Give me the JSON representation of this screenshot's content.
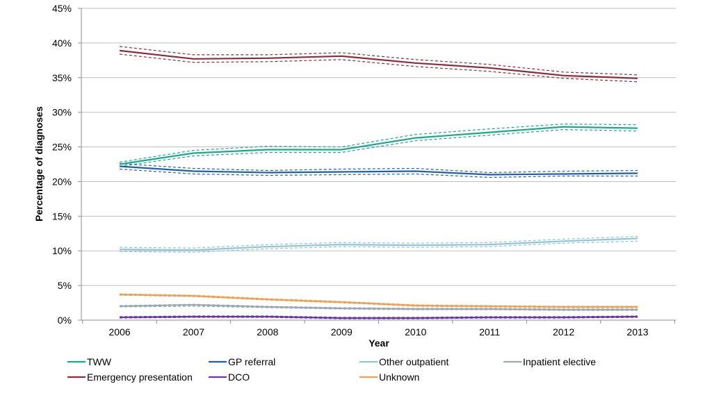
{
  "chart_data": {
    "type": "line",
    "title": "",
    "xlabel": "Year",
    "ylabel": "Percentage of diagnoses",
    "categories": [
      "2006",
      "2007",
      "2008",
      "2009",
      "2010",
      "2011",
      "2012",
      "2013"
    ],
    "ylim": [
      0,
      45
    ],
    "yticks": [
      0,
      5,
      10,
      15,
      20,
      25,
      30,
      35,
      40,
      45
    ],
    "ytick_labels": [
      "0%",
      "5%",
      "10%",
      "15%",
      "20%",
      "25%",
      "30%",
      "35%",
      "40%",
      "45%"
    ],
    "grid": true,
    "legend_position": "bottom",
    "confidence_interval_style": "dashed",
    "series": [
      {
        "name": "TWW",
        "color": "#1aa88a",
        "values": [
          22.5,
          24.1,
          24.6,
          24.6,
          26.3,
          27.1,
          27.9,
          27.7
        ],
        "lower": [
          22.2,
          23.7,
          24.2,
          24.2,
          25.9,
          26.7,
          27.5,
          27.3
        ],
        "upper": [
          22.8,
          24.5,
          25.1,
          25.0,
          26.8,
          27.6,
          28.3,
          28.2
        ]
      },
      {
        "name": "GP referral",
        "color": "#1f5fa6",
        "values": [
          22.2,
          21.5,
          21.3,
          21.4,
          21.5,
          21.0,
          21.1,
          21.2
        ],
        "lower": [
          21.8,
          21.1,
          20.9,
          21.0,
          21.1,
          20.6,
          20.8,
          20.8
        ],
        "upper": [
          22.6,
          21.9,
          21.6,
          21.8,
          21.9,
          21.3,
          21.5,
          21.6
        ]
      },
      {
        "name": "Other outpatient",
        "color": "#8fc3d8",
        "values": [
          10.2,
          10.1,
          10.6,
          10.9,
          10.8,
          10.9,
          11.4,
          11.8
        ],
        "lower": [
          9.9,
          9.8,
          10.3,
          10.6,
          10.5,
          10.6,
          11.1,
          11.4
        ],
        "upper": [
          10.5,
          10.4,
          10.9,
          11.2,
          11.1,
          11.2,
          11.7,
          12.1
        ]
      },
      {
        "name": "Inpatient elective",
        "color": "#9aa8b6",
        "values": [
          2.0,
          2.2,
          1.9,
          1.7,
          1.6,
          1.6,
          1.5,
          1.5
        ],
        "lower": [
          1.9,
          2.0,
          1.8,
          1.6,
          1.5,
          1.5,
          1.4,
          1.4
        ],
        "upper": [
          2.1,
          2.3,
          2.0,
          1.8,
          1.7,
          1.7,
          1.6,
          1.6
        ]
      },
      {
        "name": "Emergency presentation",
        "color": "#8c2a3a",
        "values": [
          38.9,
          37.7,
          37.8,
          38.1,
          37.1,
          36.4,
          35.3,
          34.9
        ],
        "lower": [
          38.4,
          37.2,
          37.3,
          37.6,
          36.6,
          35.9,
          34.9,
          34.4
        ],
        "upper": [
          39.5,
          38.3,
          38.3,
          38.6,
          37.6,
          36.9,
          35.8,
          35.4
        ]
      },
      {
        "name": "DCO",
        "color": "#6a35a8",
        "values": [
          0.4,
          0.5,
          0.5,
          0.3,
          0.3,
          0.4,
          0.4,
          0.5
        ],
        "lower": [
          0.3,
          0.4,
          0.4,
          0.2,
          0.2,
          0.3,
          0.3,
          0.4
        ],
        "upper": [
          0.5,
          0.6,
          0.6,
          0.4,
          0.4,
          0.5,
          0.5,
          0.6
        ]
      },
      {
        "name": "Unknown",
        "color": "#f0a052",
        "values": [
          3.7,
          3.5,
          3.0,
          2.6,
          2.1,
          2.0,
          1.9,
          1.9
        ],
        "lower": [
          3.6,
          3.4,
          2.9,
          2.5,
          2.0,
          1.9,
          1.8,
          1.8
        ],
        "upper": [
          3.8,
          3.6,
          3.1,
          2.7,
          2.2,
          2.1,
          2.0,
          2.0
        ]
      }
    ]
  }
}
